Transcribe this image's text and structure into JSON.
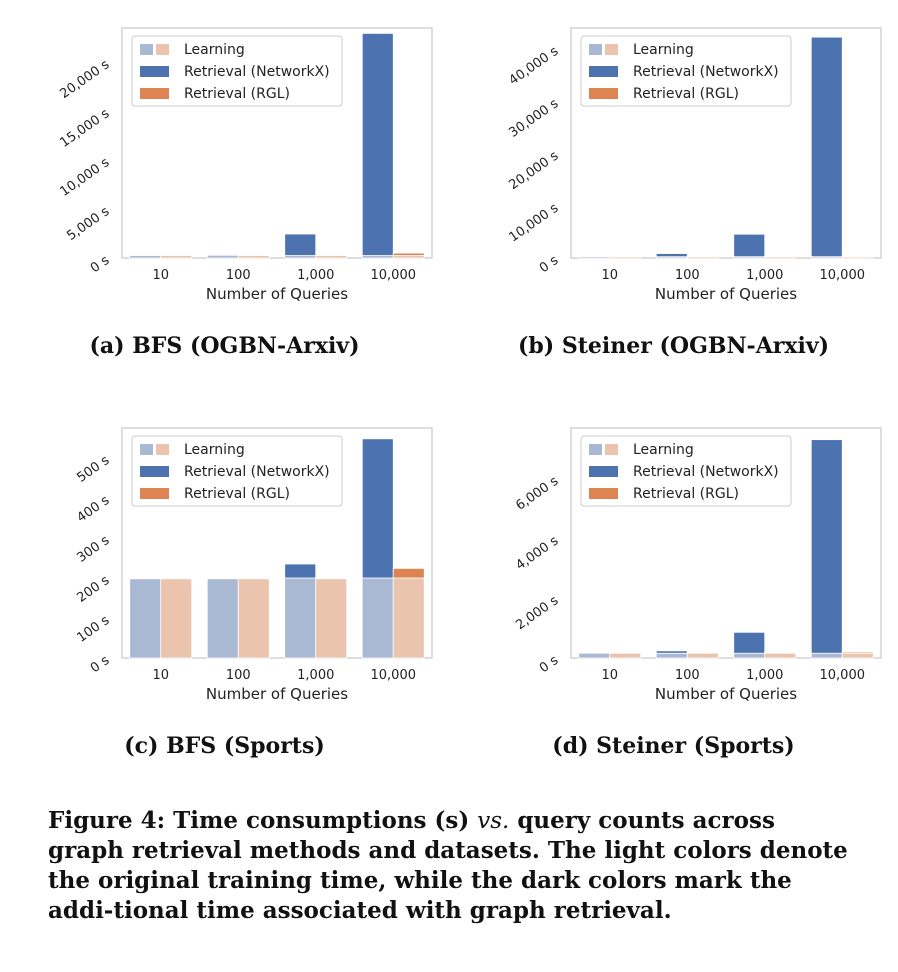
{
  "colors": {
    "learning_networkx": "#a9b8d3",
    "learning_rgl": "#ebc4ad",
    "retrieval_networkx": "#4c72b0",
    "retrieval_rgl": "#dd8452",
    "frame": "#cccccc"
  },
  "legend": {
    "learning": "Learning",
    "networkx": "Retrieval (NetworkX)",
    "rgl": "Retrieval (RGL)"
  },
  "chart_data": [
    {
      "type": "bar",
      "subtitle": "(a) BFS (OGBN-Arxiv)",
      "xlabel": "Number of Queries",
      "categories": [
        "10",
        "100",
        "1,000",
        "10,000"
      ],
      "ylim": [
        0,
        23500
      ],
      "yticks": [
        0,
        5000,
        10000,
        15000,
        20000
      ],
      "ytick_labels": [
        "0 s",
        "5,000 s",
        "10,000 s",
        "15,000 s",
        "20,000 s"
      ],
      "series": [
        {
          "name": "Learning",
          "group": "NetworkX",
          "values": [
            250,
            250,
            250,
            250
          ]
        },
        {
          "name": "Retrieval (NetworkX)",
          "values": [
            0,
            100,
            2200,
            22700
          ]
        },
        {
          "name": "Learning",
          "group": "RGL",
          "values": [
            250,
            250,
            250,
            250
          ]
        },
        {
          "name": "Retrieval (RGL)",
          "values": [
            0,
            0,
            0,
            250
          ]
        }
      ]
    },
    {
      "type": "bar",
      "subtitle": "(b) Steiner (OGBN-Arxiv)",
      "xlabel": "Number of Queries",
      "categories": [
        "10",
        "100",
        "1,000",
        "10,000"
      ],
      "ylim": [
        0,
        44000
      ],
      "yticks": [
        0,
        10000,
        20000,
        30000,
        40000
      ],
      "ytick_labels": [
        "0 s",
        "10,000 s",
        "20,000 s",
        "30,000 s",
        "40,000 s"
      ],
      "series": [
        {
          "name": "Learning",
          "group": "NetworkX",
          "values": [
            250,
            250,
            250,
            250
          ]
        },
        {
          "name": "Retrieval (NetworkX)",
          "values": [
            0,
            600,
            4300,
            42000
          ]
        },
        {
          "name": "Learning",
          "group": "RGL",
          "values": [
            250,
            250,
            250,
            250
          ]
        },
        {
          "name": "Retrieval (RGL)",
          "values": [
            0,
            0,
            0,
            150
          ]
        }
      ]
    },
    {
      "type": "bar",
      "subtitle": "(c) BFS (Sports)",
      "xlabel": "Number of Queries",
      "categories": [
        "10",
        "100",
        "1,000",
        "10,000"
      ],
      "ylim": [
        0,
        575
      ],
      "yticks": [
        0,
        100,
        200,
        300,
        400,
        500
      ],
      "ytick_labels": [
        "0 s",
        "100 s",
        "200 s",
        "300 s",
        "400 s",
        "500 s"
      ],
      "series": [
        {
          "name": "Learning",
          "group": "NetworkX",
          "values": [
            198,
            198,
            200,
            200
          ]
        },
        {
          "name": "Retrieval (NetworkX)",
          "values": [
            0,
            0,
            35,
            348
          ]
        },
        {
          "name": "Learning",
          "group": "RGL",
          "values": [
            198,
            198,
            198,
            200
          ]
        },
        {
          "name": "Retrieval (RGL)",
          "values": [
            0,
            0,
            0,
            24
          ]
        }
      ]
    },
    {
      "type": "bar",
      "subtitle": "(d) Steiner (Sports)",
      "xlabel": "Number of Queries",
      "categories": [
        "10",
        "100",
        "1,000",
        "10,000"
      ],
      "ylim": [
        0,
        7700
      ],
      "yticks": [
        0,
        2000,
        4000,
        6000
      ],
      "ytick_labels": [
        "0 s",
        "2,000 s",
        "4,000 s",
        "6,000 s"
      ],
      "series": [
        {
          "name": "Learning",
          "group": "NetworkX",
          "values": [
            160,
            160,
            160,
            160
          ]
        },
        {
          "name": "Retrieval (NetworkX)",
          "values": [
            0,
            80,
            700,
            7150
          ]
        },
        {
          "name": "Learning",
          "group": "RGL",
          "values": [
            160,
            160,
            160,
            160
          ]
        },
        {
          "name": "Retrieval (RGL)",
          "values": [
            0,
            0,
            0,
            40
          ]
        }
      ]
    }
  ],
  "caption": {
    "prefix": "Figure 4: Time consumptions (s) ",
    "vs": "vs.",
    "rest": " query counts across graph retrieval methods and datasets. The light colors denote the original training time, while the dark colors mark the addi-tional time associated with graph retrieval."
  }
}
